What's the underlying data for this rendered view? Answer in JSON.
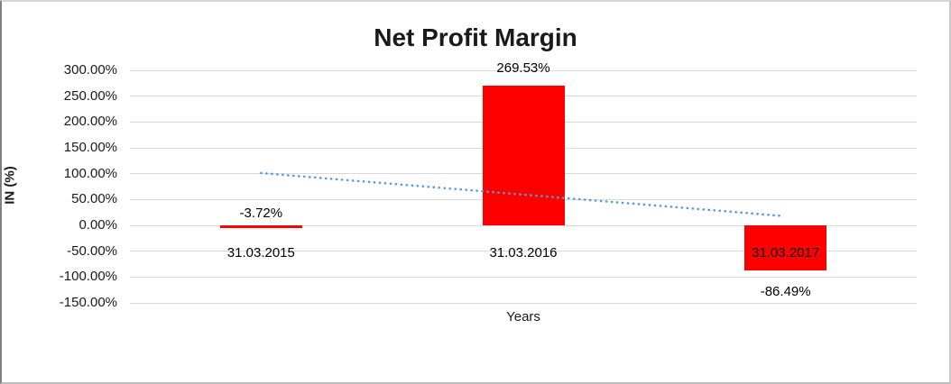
{
  "chart_data": {
    "type": "bar",
    "title": "Net Profit Margin",
    "categories": [
      "31.03.2015",
      "31.03.2016",
      "31.03.2017"
    ],
    "values": [
      -3.72,
      269.53,
      -86.49
    ],
    "data_labels": [
      "-3.72%",
      "269.53%",
      "-86.49%"
    ],
    "xlabel": "Years",
    "ylabel": "IN (%)",
    "ylim": [
      -150,
      300
    ],
    "ytick_step": 50,
    "ytick_labels": [
      "300.00%",
      "250.00%",
      "200.00%",
      "150.00%",
      "100.00%",
      "50.00%",
      "0.00%",
      "-50.00%",
      "-100.00%",
      "-150.00%"
    ],
    "grid": true,
    "legend_position": "none",
    "bar_color": "#FF0000",
    "trendline": {
      "type": "linear",
      "style": "dotted",
      "color": "#5B9BD5",
      "values": [
        101.2,
        59.8,
        18.4
      ]
    }
  }
}
